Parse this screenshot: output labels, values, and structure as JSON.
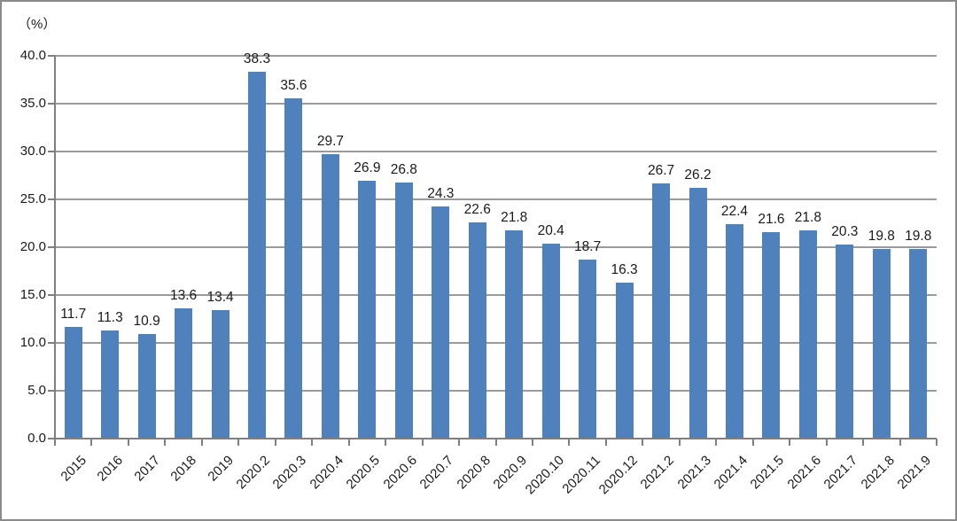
{
  "chart_data": {
    "type": "bar",
    "unit_label": "（%）",
    "categories": [
      "2015",
      "2016",
      "2017",
      "2018",
      "2019",
      "2020.2",
      "2020.3",
      "2020.4",
      "2020.5",
      "2020.6",
      "2020.7",
      "2020.8",
      "2020.9",
      "2020.10",
      "2020.11",
      "2020.12",
      "2021.2",
      "2021.3",
      "2021.4",
      "2021.5",
      "2021.6",
      "2021.7",
      "2021.8",
      "2021.9"
    ],
    "values": [
      11.7,
      11.3,
      10.9,
      13.6,
      13.4,
      38.3,
      35.6,
      29.7,
      26.9,
      26.8,
      24.3,
      22.6,
      21.8,
      20.4,
      18.7,
      16.3,
      26.7,
      26.2,
      22.4,
      21.6,
      21.8,
      20.3,
      19.8,
      19.8
    ],
    "data_labels_shown": true,
    "ylim": [
      0,
      40
    ],
    "ytick_labels": [
      "0.0",
      "5.0",
      "10.0",
      "15.0",
      "20.0",
      "25.0",
      "30.0",
      "35.0",
      "40.0"
    ],
    "grid": "horizontal",
    "legend": "none",
    "x_label_rotation_deg": -45,
    "colors": {
      "bar": "#4f81bd",
      "gridline": "#9a9a9a",
      "axis": "#7f7f7f",
      "text": "#1a1a1a",
      "border": "#8a8a8a",
      "background": "#ffffff"
    }
  }
}
